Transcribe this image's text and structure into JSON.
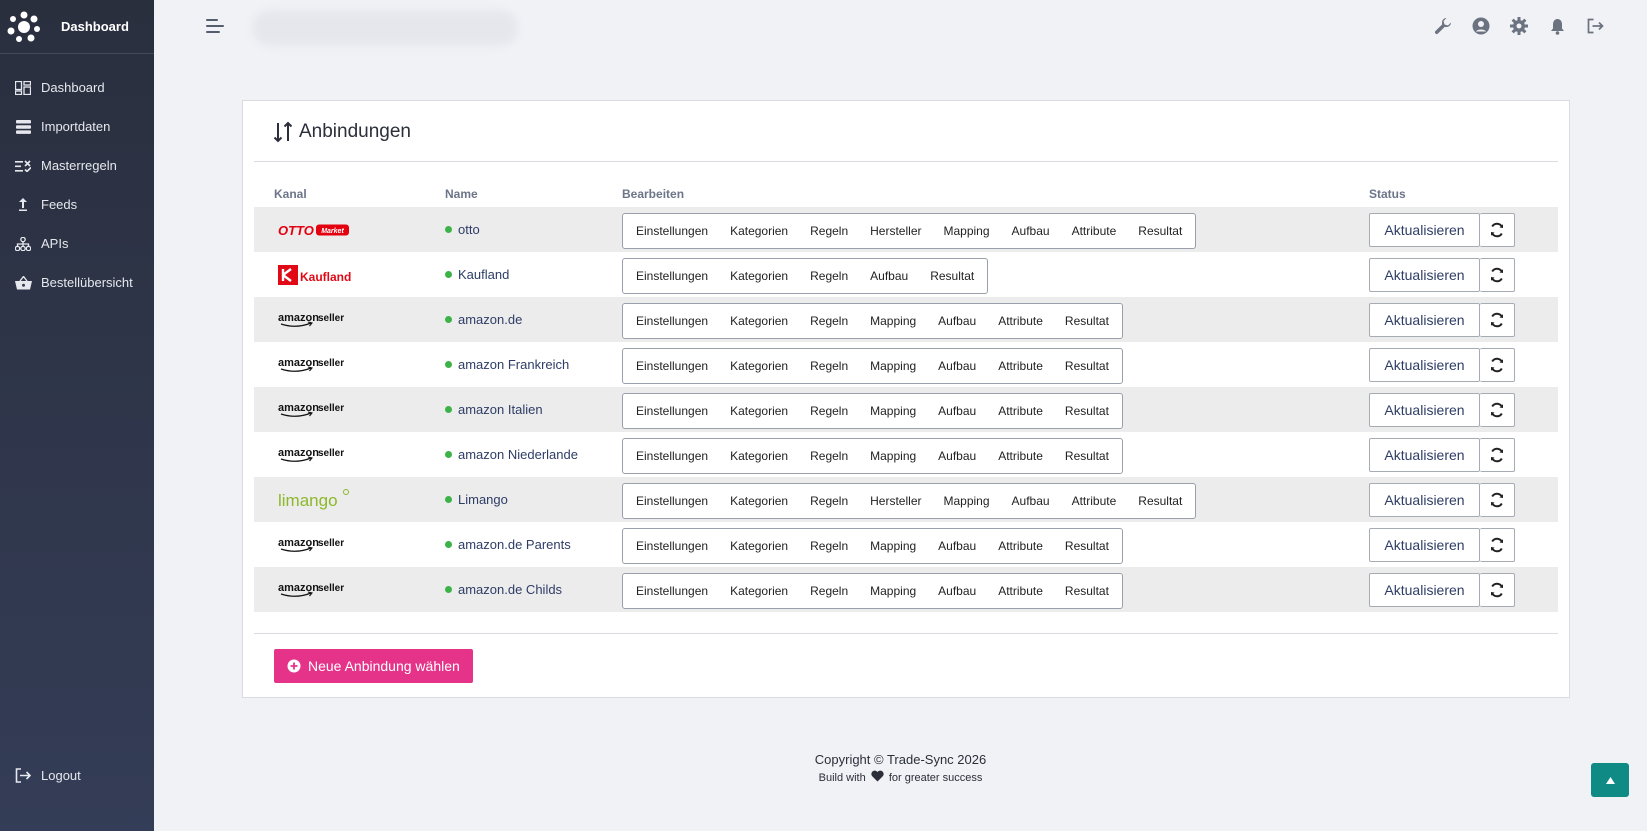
{
  "sidebar": {
    "brand": "Dashboard",
    "items": [
      {
        "label": "Dashboard",
        "icon": "dashboard-icon"
      },
      {
        "label": "Importdaten",
        "icon": "database-icon"
      },
      {
        "label": "Masterregeln",
        "icon": "rules-icon"
      },
      {
        "label": "Feeds",
        "icon": "upload-icon"
      },
      {
        "label": "APIs",
        "icon": "sitemap-icon"
      },
      {
        "label": "Bestellübersicht",
        "icon": "basket-icon"
      }
    ],
    "logout": "Logout"
  },
  "header": {
    "icons": [
      "wrench-icon",
      "user-icon",
      "gear-icon",
      "bell-icon",
      "logout-icon"
    ]
  },
  "card": {
    "title": "Anbindungen",
    "columns": {
      "kanal": "Kanal",
      "name": "Name",
      "bearbeiten": "Bearbeiten",
      "status": "Status"
    },
    "update_label": "Aktualisieren",
    "new_button": "Neue Anbindung wählen",
    "rows": [
      {
        "channel": "otto",
        "logo_text": "OTTO",
        "logo_badge": "Market",
        "name": "otto",
        "actions": [
          "Einstellungen",
          "Kategorien",
          "Regeln",
          "Hersteller",
          "Mapping",
          "Aufbau",
          "Attribute",
          "Resultat"
        ]
      },
      {
        "channel": "kaufland",
        "logo_text": "Kaufland",
        "name": "Kaufland",
        "actions": [
          "Einstellungen",
          "Kategorien",
          "Regeln",
          "Aufbau",
          "Resultat"
        ]
      },
      {
        "channel": "amazon",
        "logo_text": "amazon seller",
        "name": "amazon.de",
        "actions": [
          "Einstellungen",
          "Kategorien",
          "Regeln",
          "Mapping",
          "Aufbau",
          "Attribute",
          "Resultat"
        ]
      },
      {
        "channel": "amazon",
        "logo_text": "amazon seller",
        "name": "amazon Frankreich",
        "actions": [
          "Einstellungen",
          "Kategorien",
          "Regeln",
          "Mapping",
          "Aufbau",
          "Attribute",
          "Resultat"
        ]
      },
      {
        "channel": "amazon",
        "logo_text": "amazon seller",
        "name": "amazon Italien",
        "actions": [
          "Einstellungen",
          "Kategorien",
          "Regeln",
          "Mapping",
          "Aufbau",
          "Attribute",
          "Resultat"
        ]
      },
      {
        "channel": "amazon",
        "logo_text": "amazon seller",
        "name": "amazon Niederlande",
        "actions": [
          "Einstellungen",
          "Kategorien",
          "Regeln",
          "Mapping",
          "Aufbau",
          "Attribute",
          "Resultat"
        ]
      },
      {
        "channel": "limango",
        "logo_text": "limango",
        "name": "Limango",
        "actions": [
          "Einstellungen",
          "Kategorien",
          "Regeln",
          "Hersteller",
          "Mapping",
          "Aufbau",
          "Attribute",
          "Resultat"
        ]
      },
      {
        "channel": "amazon",
        "logo_text": "amazon seller",
        "name": "amazon.de Parents",
        "actions": [
          "Einstellungen",
          "Kategorien",
          "Regeln",
          "Mapping",
          "Aufbau",
          "Attribute",
          "Resultat"
        ]
      },
      {
        "channel": "amazon",
        "logo_text": "amazon seller",
        "name": "amazon.de Childs",
        "actions": [
          "Einstellungen",
          "Kategorien",
          "Regeln",
          "Mapping",
          "Aufbau",
          "Attribute",
          "Resultat"
        ]
      }
    ]
  },
  "footer": {
    "copyright": "Copyright © Trade-Sync 2026",
    "build_prefix": "Build with",
    "build_suffix": "for greater success"
  },
  "scroll_top_icon": "arrow-up-icon",
  "colors": {
    "accent": "#e5338a",
    "status_ok": "#3cb349",
    "scroll_top": "#0f8a85",
    "sidebar": "#2a2f3e"
  }
}
